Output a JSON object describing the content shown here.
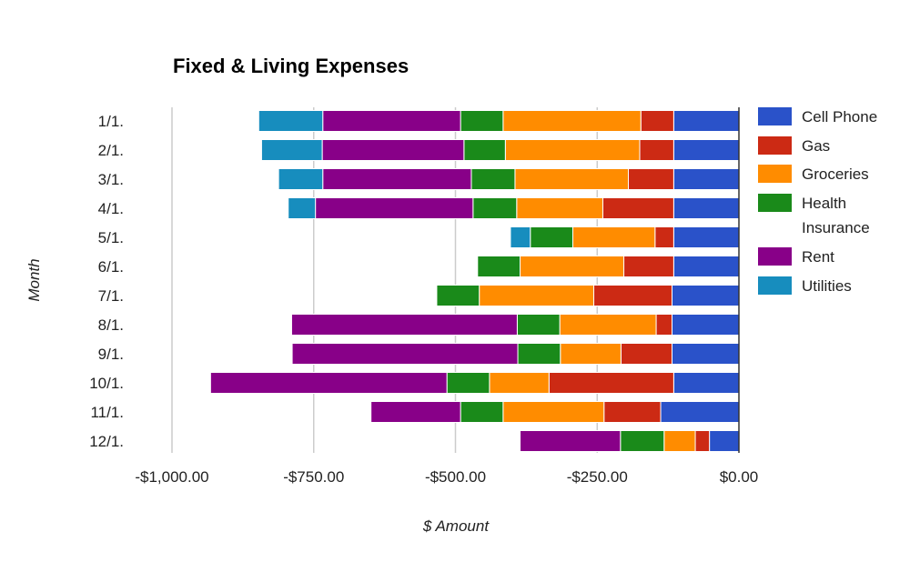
{
  "chart_data": {
    "type": "bar",
    "orientation": "horizontal",
    "stacked": true,
    "title": "Fixed & Living Expenses",
    "xlabel": "$ Amount",
    "ylabel": "Month",
    "categories": [
      "1/1.",
      "2/1.",
      "3/1.",
      "4/1.",
      "5/1.",
      "6/1.",
      "7/1.",
      "8/1.",
      "9/1.",
      "10/1.",
      "11/1.",
      "12/1."
    ],
    "xlim": [
      -1000,
      0
    ],
    "xticks": [
      -1000,
      -750,
      -500,
      -250,
      0
    ],
    "xtick_labels": [
      "-$1,000.00",
      "-$750.00",
      "-$500.00",
      "-$250.00",
      "$0.00"
    ],
    "grid": true,
    "legend_position": "right",
    "series": [
      {
        "name": "Cell Phone",
        "color": "#2a52c9",
        "values": [
          -115,
          -115,
          -115,
          -115,
          -115,
          -115,
          -118,
          -118,
          -118,
          -115,
          -138,
          -52
        ]
      },
      {
        "name": "Gas",
        "color": "#cc2a14",
        "values": [
          -58,
          -60,
          -80,
          -125,
          -33,
          -88,
          -138,
          -28,
          -90,
          -220,
          -100,
          -25
        ]
      },
      {
        "name": "Groceries",
        "color": "#ff8c00",
        "values": [
          -243,
          -237,
          -200,
          -152,
          -145,
          -183,
          -202,
          -170,
          -107,
          -105,
          -178,
          -55
        ]
      },
      {
        "name": "Health Insurance",
        "color": "#1a8a1a",
        "values": [
          -75,
          -73,
          -77,
          -77,
          -75,
          -75,
          -75,
          -75,
          -75,
          -75,
          -75,
          -77
        ]
      },
      {
        "name": "Rent",
        "color": "#880088",
        "values": [
          -243,
          -250,
          -262,
          -278,
          0,
          0,
          0,
          -398,
          -398,
          -417,
          -158,
          -177
        ]
      },
      {
        "name": "Utilities",
        "color": "#178dbe",
        "values": [
          -113,
          -107,
          -78,
          -48,
          -35,
          0,
          0,
          0,
          0,
          0,
          0,
          0
        ]
      }
    ],
    "legend_lines": [
      [
        "Cell Phone"
      ],
      [
        "Gas"
      ],
      [
        "Groceries"
      ],
      [
        "Health",
        "Insurance"
      ],
      [
        "Rent"
      ],
      [
        "Utilities"
      ]
    ]
  }
}
